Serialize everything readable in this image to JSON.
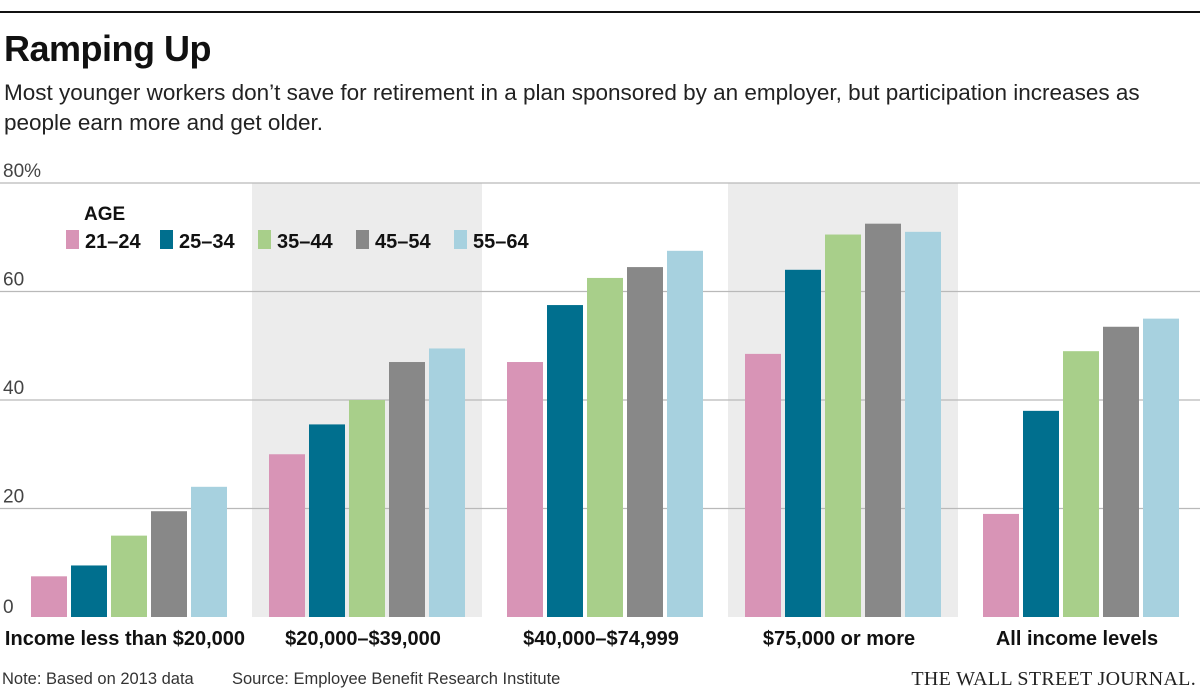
{
  "title": "Ramping Up",
  "subtitle": "Most younger workers don’t save for retirement in a plan sponsored by an employer, but participation increases as people earn more and get older.",
  "note": "Note: Based on 2013 data",
  "source": "Source: Employee Benefit Research Institute",
  "publisher": "THE WALL STREET JOURNAL.",
  "chart_data": {
    "type": "bar",
    "title": "Ramping Up",
    "ylabel": "",
    "xlabel": "",
    "ylim": [
      0,
      80
    ],
    "yticks": [
      0,
      20,
      40,
      60,
      80
    ],
    "ytick_labels": [
      "0",
      "20",
      "40",
      "60",
      "80%"
    ],
    "legend_title": "AGE",
    "legend_position": "top-left",
    "categories": [
      "Income less than $20,000",
      "$20,000–$39,000",
      "$40,000–$74,999",
      "$75,000 or more",
      "All income levels"
    ],
    "shaded_categories": [
      1,
      3
    ],
    "series": [
      {
        "name": "21–24",
        "color": "#d894b6",
        "values": [
          7.5,
          30,
          47,
          48.5,
          19
        ]
      },
      {
        "name": "25–34",
        "color": "#006f8e",
        "values": [
          9.5,
          35.5,
          57.5,
          64,
          38
        ]
      },
      {
        "name": "35–44",
        "color": "#a8cf8a",
        "values": [
          15,
          40,
          62.5,
          70.5,
          49
        ]
      },
      {
        "name": "45–54",
        "color": "#888888",
        "values": [
          19.5,
          47,
          64.5,
          72.5,
          53.5
        ]
      },
      {
        "name": "55–64",
        "color": "#a7d1df",
        "values": [
          24,
          49.5,
          67.5,
          71,
          55
        ]
      }
    ],
    "shade_color": "#ececec",
    "grid_color": "#b9b9b9"
  }
}
